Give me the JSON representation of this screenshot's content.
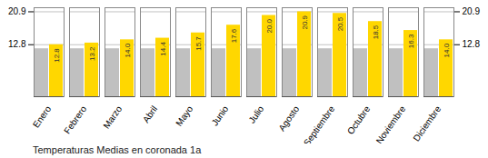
{
  "chart_data": {
    "type": "bar",
    "title": "Temperaturas Medias en coronada 1a",
    "categories": [
      "Enero",
      "Febrero",
      "Marzo",
      "Abril",
      "Mayo",
      "Junio",
      "Julio",
      "Agosto",
      "Septiembre",
      "Octubre",
      "Noviembre",
      "Diciembre"
    ],
    "series": [
      {
        "color": "#C0C0C0",
        "values": [
          11.8,
          11.8,
          11.8,
          11.8,
          11.8,
          11.8,
          11.8,
          11.8,
          11.8,
          11.8,
          11.8,
          11.8
        ]
      },
      {
        "color": "#FFD700",
        "values": [
          12.8,
          13.2,
          14.0,
          14.4,
          15.7,
          17.6,
          20.0,
          20.9,
          20.5,
          18.5,
          16.3,
          14.0
        ],
        "data_labels": true,
        "value_labels": [
          "12.8",
          "13.2",
          "14.0",
          "14.4",
          "15.7",
          "17.6",
          "20.0",
          "20.9",
          "20.5",
          "18.5",
          "16.3",
          "14.0"
        ]
      }
    ],
    "ylim": [
      0,
      21.9
    ],
    "yticks": [
      12.8,
      20.9
    ],
    "grid": true
  }
}
